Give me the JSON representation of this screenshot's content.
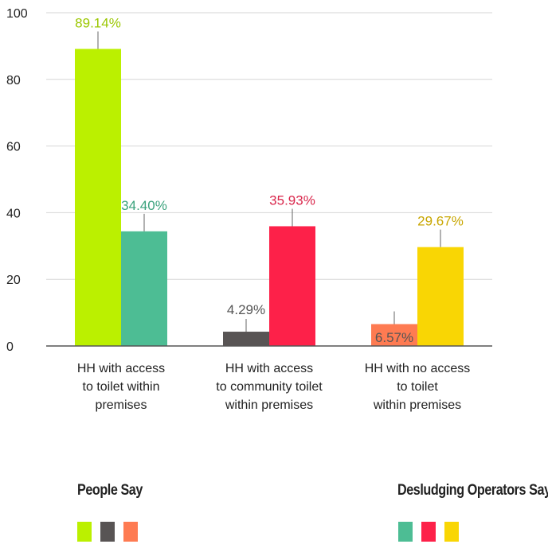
{
  "chart_data": {
    "type": "bar",
    "categories": [
      [
        "HH with access",
        "to toilet within",
        "premises"
      ],
      [
        "HH with access",
        "to community toilet",
        "within premises"
      ],
      [
        "HH with no access",
        "to toilet",
        "within premises"
      ]
    ],
    "bars": [
      [
        {
          "value": 89.14,
          "label": "89.14%",
          "color": "#bbf000",
          "label_color": "#9bc700"
        },
        {
          "value": 34.4,
          "label": "34.40%",
          "color": "#4dbd94",
          "label_color": "#3aa27c"
        }
      ],
      [
        {
          "value": 4.29,
          "label": "4.29%",
          "color": "#585454",
          "label_color": "#555555"
        },
        {
          "value": 35.93,
          "label": "35.93%",
          "color": "#fd2149",
          "label_color": "#d9264b"
        }
      ],
      [
        {
          "value": 6.57,
          "label": "6.57%",
          "color": "#fe7b52",
          "label_color": "#555555"
        },
        {
          "value": 29.67,
          "label": "29.67%",
          "color": "#f9d604",
          "label_color": "#c8a600"
        }
      ]
    ],
    "ylim": [
      0,
      100
    ],
    "yticks": [
      0,
      20,
      40,
      60,
      80,
      100
    ],
    "grid": true
  },
  "legend": {
    "people": {
      "title": "People Say",
      "colors": [
        "#bbf000",
        "#585454",
        "#fe7b52"
      ]
    },
    "operators": {
      "title": "Desludging Operators Say",
      "colors": [
        "#4dbd94",
        "#fd2149",
        "#f9d604"
      ]
    }
  }
}
